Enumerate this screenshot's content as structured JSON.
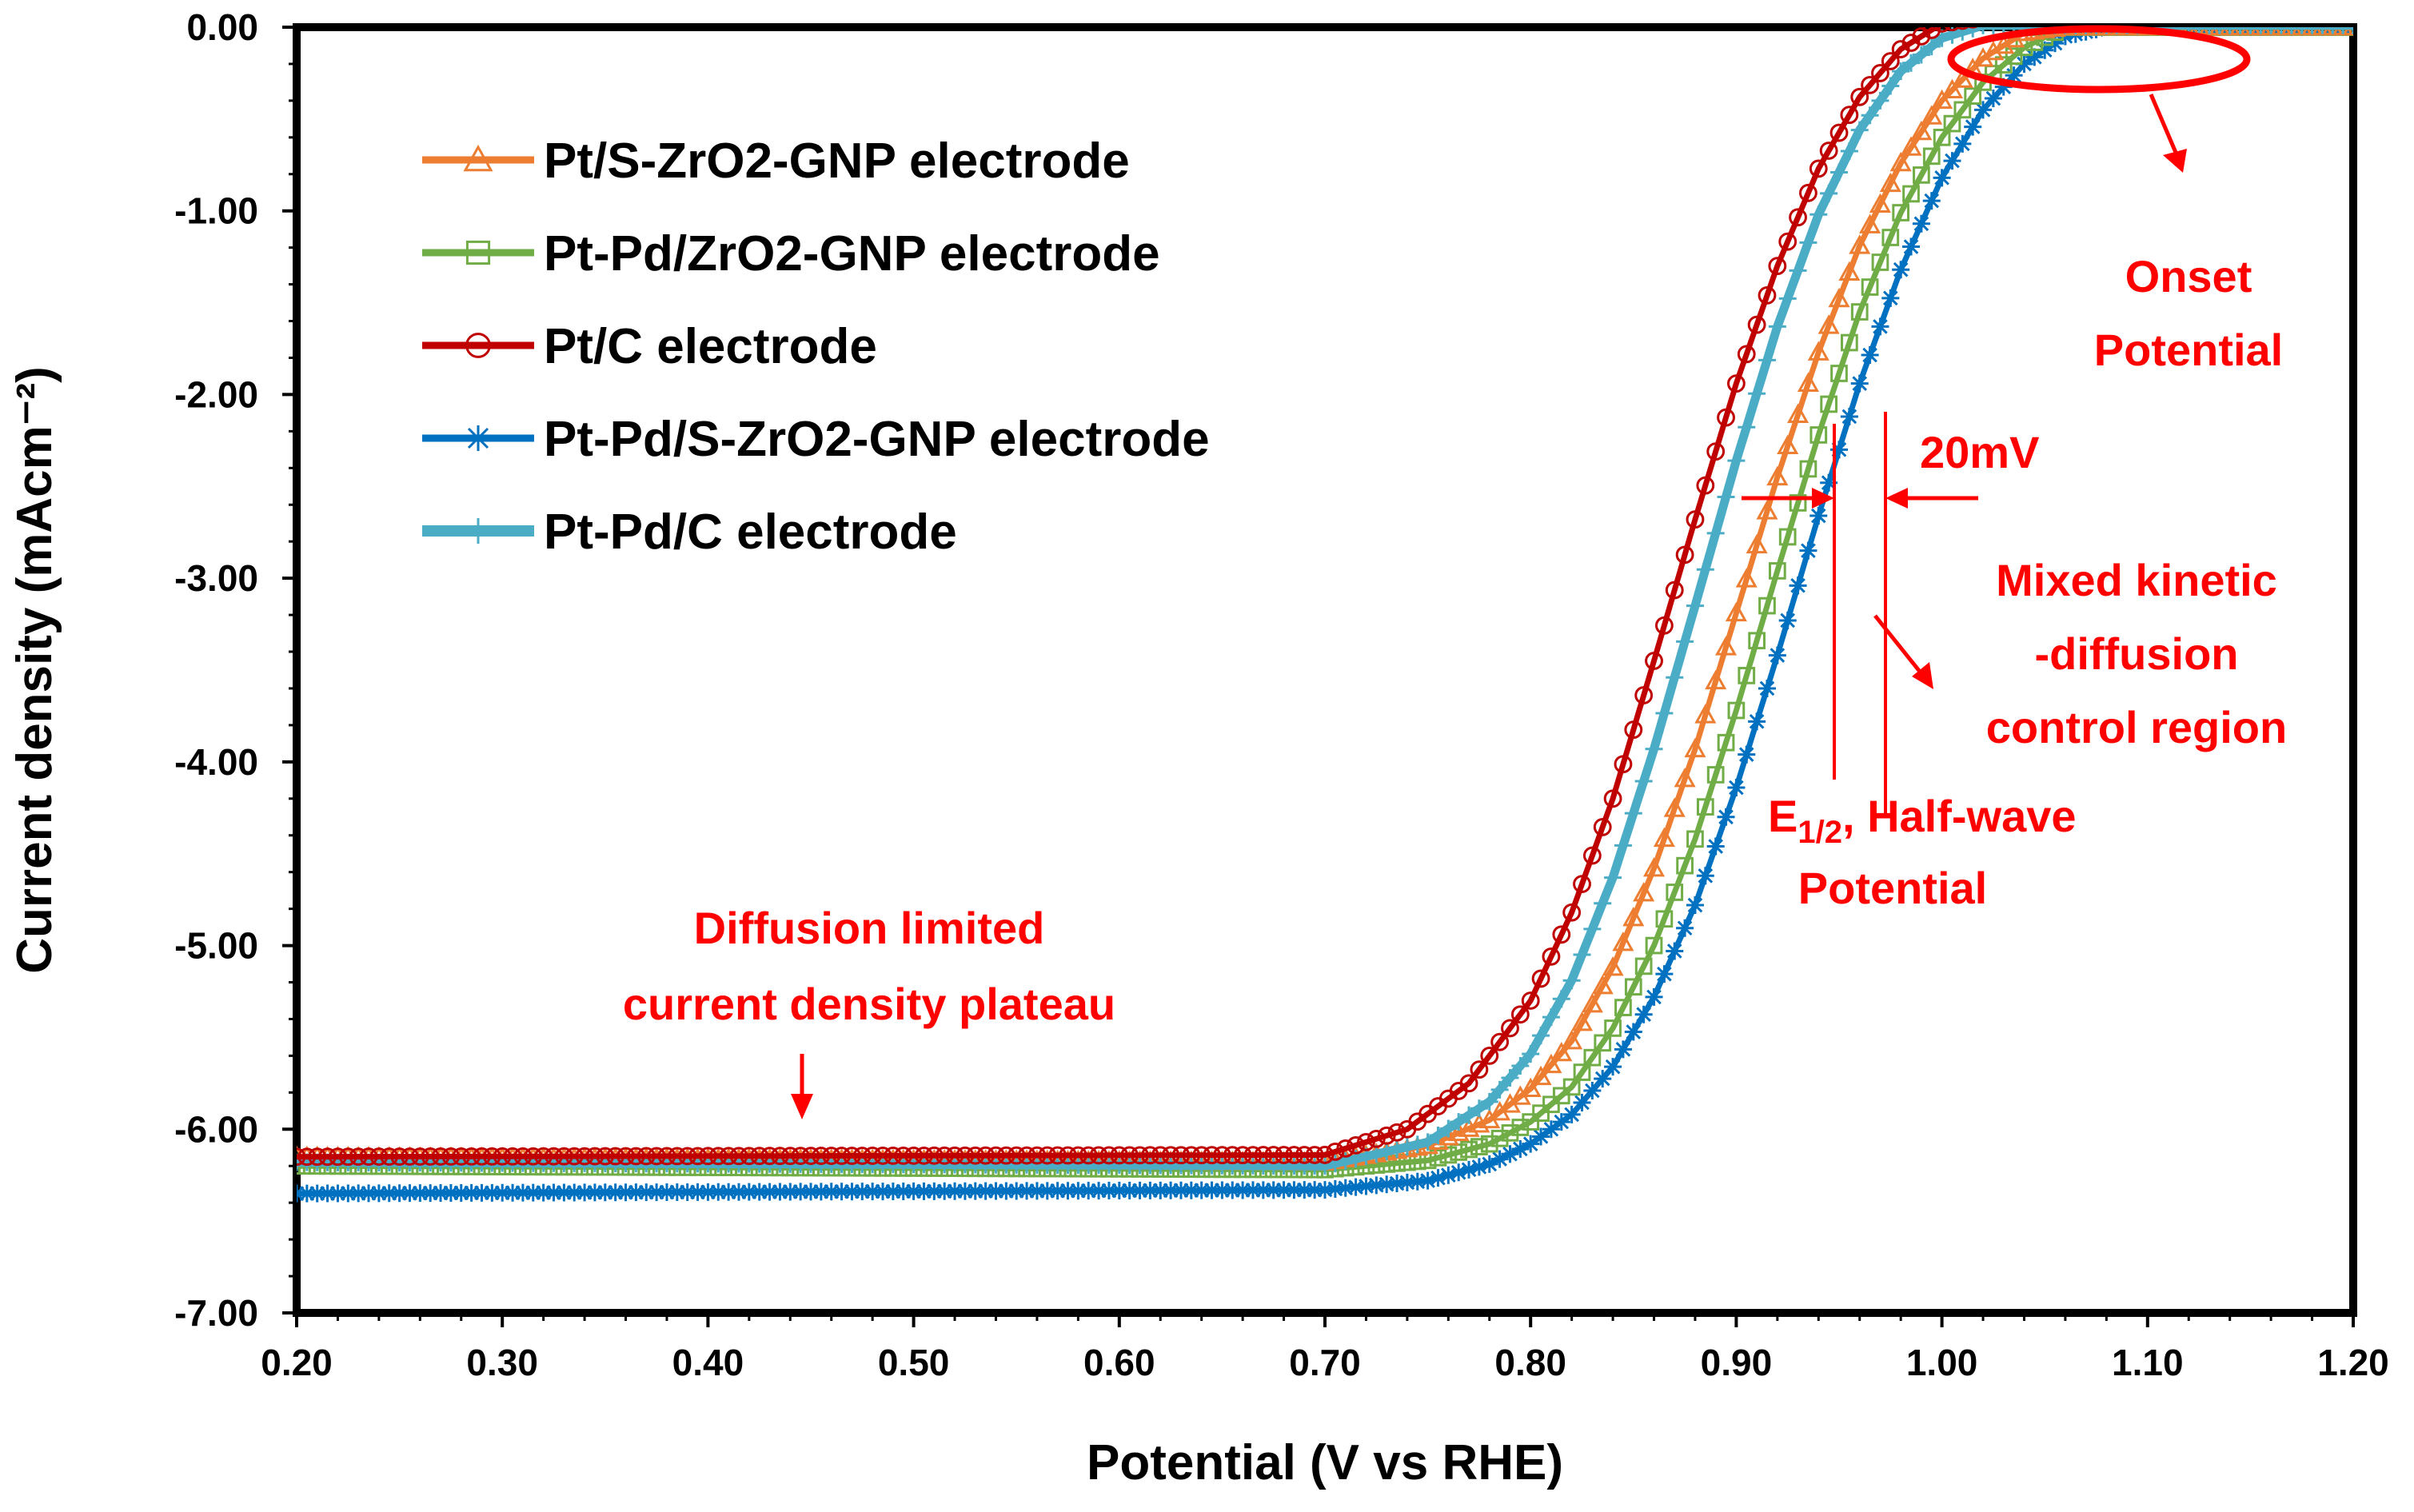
{
  "chart_data": {
    "type": "line",
    "title": "",
    "xlabel": "Potential (V vs RHE)",
    "ylabel": "Current density (mAcm⁻²)",
    "xlim": [
      0.2,
      1.2
    ],
    "ylim": [
      -7.0,
      0.0
    ],
    "x_ticks": [
      "0.20",
      "0.30",
      "0.40",
      "0.50",
      "0.60",
      "0.70",
      "0.80",
      "0.90",
      "1.00",
      "1.10",
      "1.20"
    ],
    "y_ticks": [
      "0.00",
      "-1.00",
      "-2.00",
      "-3.00",
      "-4.00",
      "-5.00",
      "-6.00",
      "-7.00"
    ],
    "grid": false,
    "legend_position": "top-left",
    "series": [
      {
        "name": "Pt/S-ZrO2-GNP electrode",
        "color": "#ED7D31",
        "marker": "triangle",
        "x": [
          0.2,
          0.7,
          0.75,
          0.78,
          0.8,
          0.82,
          0.84,
          0.86,
          0.88,
          0.9,
          0.92,
          0.94,
          0.96,
          0.98,
          1.0,
          1.02,
          1.04,
          1.06,
          1.2
        ],
        "y": [
          -6.15,
          -6.18,
          -6.09,
          -5.95,
          -5.78,
          -5.52,
          -5.12,
          -4.58,
          -3.93,
          -3.19,
          -2.45,
          -1.77,
          -1.19,
          -0.74,
          -0.4,
          -0.17,
          -0.03,
          0.0,
          0.0
        ]
      },
      {
        "name": "Pt-Pd/ZrO2-GNP electrode",
        "color": "#70AD47",
        "marker": "square",
        "x": [
          0.2,
          0.7,
          0.75,
          0.78,
          0.8,
          0.82,
          0.84,
          0.86,
          0.88,
          0.9,
          0.92,
          0.94,
          0.96,
          0.98,
          1.0,
          1.02,
          1.04,
          1.06,
          1.08,
          1.2
        ],
        "y": [
          -6.2,
          -6.22,
          -6.17,
          -6.08,
          -5.96,
          -5.77,
          -5.45,
          -5.0,
          -4.42,
          -3.72,
          -2.96,
          -2.22,
          -1.55,
          -1.01,
          -0.6,
          -0.3,
          -0.11,
          0.0,
          0.0,
          0.0
        ]
      },
      {
        "name": "Pt/C electrode",
        "color": "#C00000",
        "marker": "circle",
        "x": [
          0.2,
          0.7,
          0.74,
          0.77,
          0.8,
          0.82,
          0.84,
          0.86,
          0.88,
          0.9,
          0.92,
          0.94,
          0.96,
          0.98,
          1.0,
          1.02,
          1.04,
          1.2
        ],
        "y": [
          -6.15,
          -6.14,
          -6.0,
          -5.75,
          -5.3,
          -4.82,
          -4.2,
          -3.45,
          -2.68,
          -1.94,
          -1.3,
          -0.77,
          -0.38,
          -0.12,
          0.02,
          0.05,
          0.05,
          0.05
        ]
      },
      {
        "name": "Pt-Pd/S-ZrO2-GNP electrode",
        "color": "#0070C0",
        "marker": "star",
        "x": [
          0.2,
          0.7,
          0.75,
          0.78,
          0.8,
          0.82,
          0.84,
          0.86,
          0.88,
          0.9,
          0.92,
          0.94,
          0.96,
          0.98,
          1.0,
          1.02,
          1.04,
          1.06,
          1.08,
          1.2
        ],
        "y": [
          -6.35,
          -6.33,
          -6.28,
          -6.19,
          -6.08,
          -5.92,
          -5.66,
          -5.28,
          -4.78,
          -4.14,
          -3.42,
          -2.66,
          -1.94,
          -1.32,
          -0.82,
          -0.45,
          -0.2,
          -0.05,
          0.0,
          0.0
        ]
      },
      {
        "name": "Pt-Pd/C  electrode",
        "color": "#4BACC6",
        "marker": "plus",
        "x": [
          0.2,
          0.7,
          0.75,
          0.78,
          0.8,
          0.82,
          0.84,
          0.86,
          0.88,
          0.9,
          0.92,
          0.94,
          0.96,
          0.98,
          1.0,
          1.02,
          1.04,
          1.2
        ],
        "y": [
          -6.18,
          -6.2,
          -6.07,
          -5.85,
          -5.59,
          -5.19,
          -4.63,
          -3.93,
          -3.15,
          -2.36,
          -1.63,
          -1.02,
          -0.56,
          -0.24,
          -0.06,
          0.01,
          0.01,
          0.01
        ]
      }
    ],
    "annotations": {
      "onset": [
        "Onset",
        "Potential"
      ],
      "mv": "20mV",
      "mixed": [
        "Mixed kinetic",
        "-diffusion",
        "control region"
      ],
      "half_wave_1": "E",
      "half_wave_sub": "1/2",
      "half_wave_1b": ", Half-wave",
      "half_wave_2": "Potential",
      "plateau": [
        "Diffusion limited",
        "current density plateau"
      ]
    },
    "annotation_color": "#FF0000"
  }
}
